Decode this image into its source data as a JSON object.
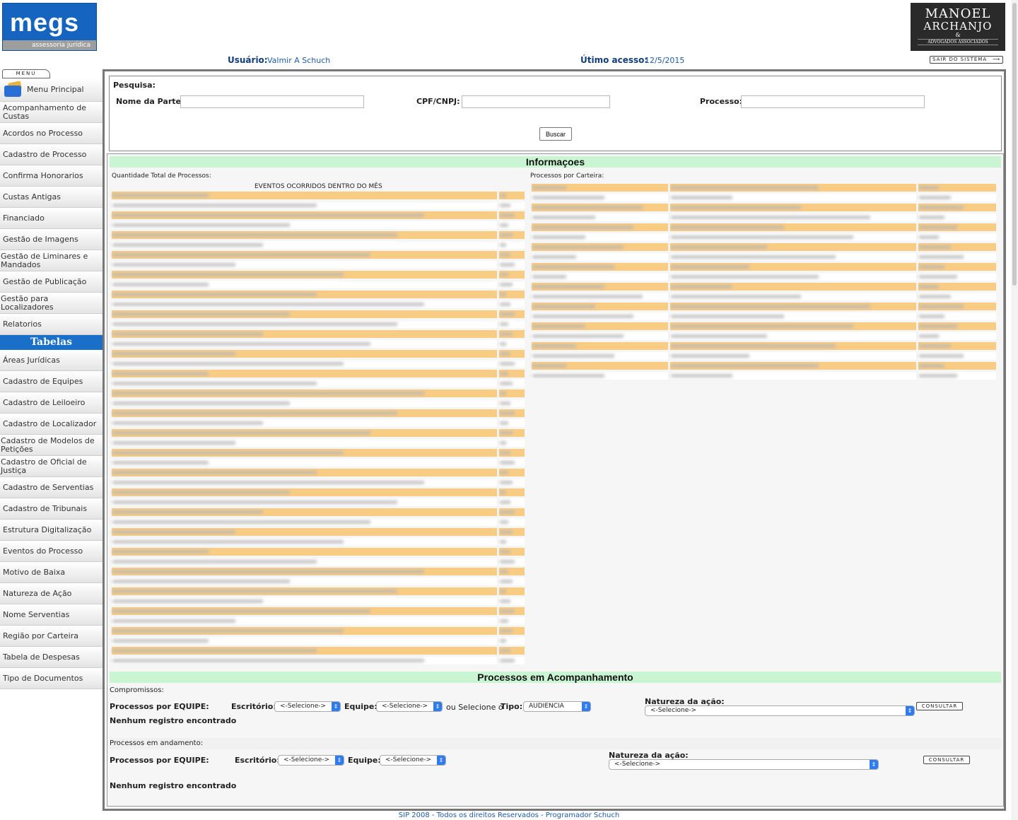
{
  "header": {
    "logo_megs": "megs",
    "logo_megs_sub": "assessoria jurídica",
    "logo_right_line1": "MANOEL",
    "logo_right_line2": "ARCHANJO",
    "logo_right_line3": "&",
    "logo_right_line4": "ADVOGADOS ASSOCIADOS",
    "user_label": "Usuário:",
    "user_value": "Valmir A Schuch",
    "last_access_label": "Útimo acesso:",
    "last_access_value": "12/5/2015",
    "logout_label": "SAIR DO SISTEMA"
  },
  "sidebar": {
    "menu_tab": "MENU",
    "main_item": "Menu Principal",
    "items": [
      "Acompanhamento de Custas",
      "Acordos no Processo",
      "Cadastro de Processo",
      "Confirma Honorarios",
      "Custas Antigas",
      "Financiado",
      "Gestão de Imagens",
      "Gestão de Liminares e Mandados",
      "Gestão de Publicação",
      "Gestão para Localizadores",
      "Relatorios"
    ],
    "tables_heading": "Tabelas",
    "tables": [
      "Áreas Jurídicas",
      "Cadastro de Equipes",
      "Cadastro de Leiloeiro",
      "Cadastro de Localizador",
      "Cadastro de Modelos de Petições",
      "Cadastro de Oficial de Justiça",
      "Cadastro de Serventias",
      "Cadastro de Tribunais",
      "Estrutura Digitalização",
      "Eventos do Processo",
      "Motivo de Baixa",
      "Natureza de Ação",
      "Nome Serventias",
      "Região por Carteira",
      "Tabela de Despesas",
      "Tipo de Documentos"
    ]
  },
  "search": {
    "title": "Pesquisa:",
    "name_label": "Nome da Parte:",
    "name_value": "",
    "cpf_label": "CPF/CNPJ:",
    "cpf_value": "",
    "process_label": "Processo:",
    "process_value": "",
    "button_label": "Buscar"
  },
  "info": {
    "heading": "Informaçoes",
    "total_label": "Quantidade Total de Processos:",
    "events_title": "EVENTOS OCORRIDOS DENTRO DO MÊS",
    "portfolio_label": "Processos por Carteira:",
    "portfolio_visible_char": "Z"
  },
  "tracking": {
    "heading": "Processos em Acompanhamento",
    "commitments_label": "Compromissos:",
    "by_team_label": "Processos por EQUIPE:",
    "office_label": "Escritório:",
    "team_label": "Equipe:",
    "or_select_label": "ou Selecione o",
    "type_label": "Tipo:",
    "select_placeholder": "<-Selecione->",
    "type_value": "AUDIENCIA",
    "nature_label": "Natureza da ação:",
    "consult_label": "CONSULTAR",
    "no_records": "Nenhum registro encontrado",
    "in_progress_label": "Processos em andamento:"
  },
  "footer": {
    "text": "SIP 2008 - Todos os direitos Reservados - Programador Schuch"
  },
  "colors": {
    "brand_blue": "#1565c0",
    "row_orange": "#f9cc84",
    "section_green": "#c9f5d3"
  }
}
